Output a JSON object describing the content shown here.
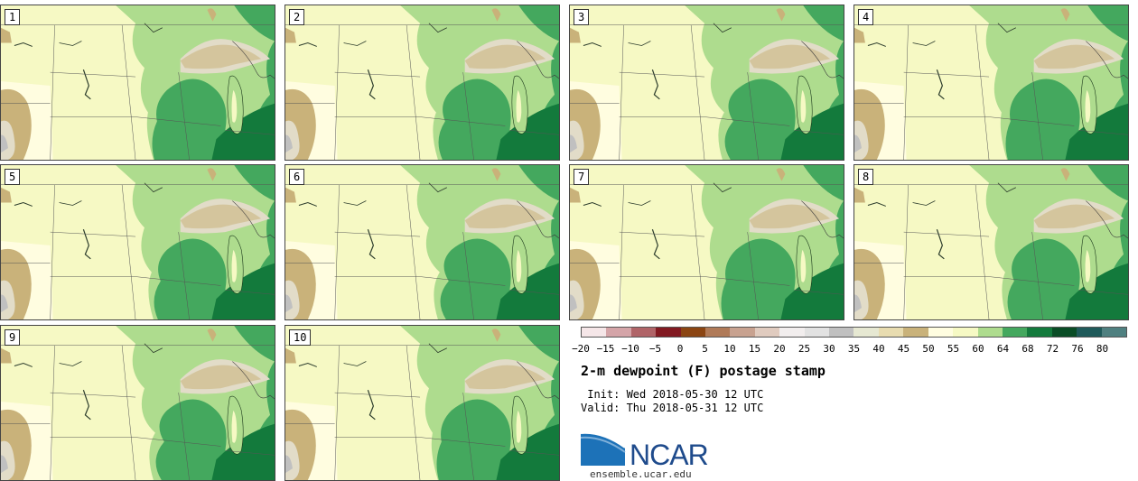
{
  "panels": [
    {
      "label": "1"
    },
    {
      "label": "2"
    },
    {
      "label": "3"
    },
    {
      "label": "4"
    },
    {
      "label": "5"
    },
    {
      "label": "6"
    },
    {
      "label": "7"
    },
    {
      "label": "8"
    },
    {
      "label": "9"
    },
    {
      "label": "10"
    }
  ],
  "colorbar": {
    "tick_labels": [
      "−20",
      "−15",
      "−10",
      "−5",
      "0",
      "5",
      "10",
      "15",
      "20",
      "25",
      "30",
      "35",
      "40",
      "45",
      "50",
      "55",
      "60",
      "64",
      "68",
      "72",
      "76",
      "80"
    ],
    "colors": [
      "#f5e6e8",
      "#d4a4a8",
      "#b06468",
      "#821a22",
      "#8b4513",
      "#b07a58",
      "#c8a290",
      "#e0cbbf",
      "#f2eeee",
      "#e2e2e2",
      "#c0c0c0",
      "#e6e8d2",
      "#e8dcb0",
      "#c9b27a",
      "#fffde0",
      "#f6f9c4",
      "#aedc8e",
      "#44a85e",
      "#137a3c",
      "#0a4d26",
      "#1f5a5a",
      "#4f8080"
    ]
  },
  "title": "2-m dewpoint (F) postage stamp",
  "init_text": " Init: Wed 2018-05-30 12 UTC",
  "valid_text": "Valid: Thu 2018-05-31 12 UTC",
  "logo_text": "NCAR",
  "url": "ensemble.ucar.edu"
}
